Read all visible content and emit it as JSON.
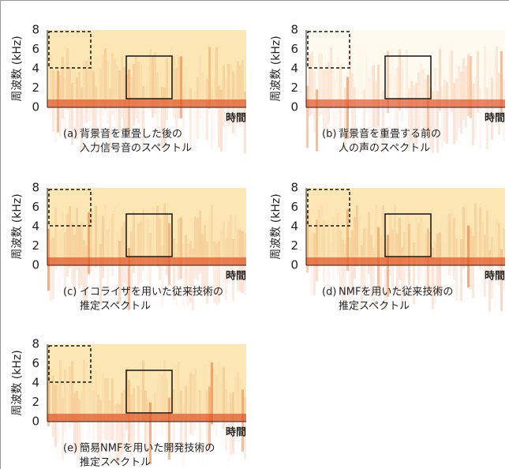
{
  "panels": [
    {
      "label": "(a)",
      "caption": [
        "背景音を重畳した後の",
        "入力信号音のスペクトル"
      ],
      "ylabel": "周波数 (kHz)",
      "yticks": [
        0,
        2,
        4,
        6,
        8
      ],
      "xlabel": "時間"
    },
    {
      "label": "(b)",
      "caption": [
        "背景音を重畳する前の",
        "人の声のスペクトル"
      ],
      "ylabel": "周波数 (kHz)",
      "yticks": [
        0,
        2,
        4,
        6,
        8
      ],
      "xlabel": "時間"
    },
    {
      "label": "(c)",
      "caption": [
        "イコライザを用いた従来技術の",
        "推定スペクトル"
      ],
      "ylabel": "周波数 (kHz)",
      "yticks": [
        0,
        2,
        4,
        6,
        8
      ],
      "xlabel": "時間"
    },
    {
      "label": "(d)",
      "caption": [
        "NMFを用いた従来技術の",
        "推定スペクトル"
      ],
      "ylabel": "周波数 (kHz)",
      "yticks": [
        0,
        2,
        4,
        6,
        8
      ],
      "xlabel": "時間"
    },
    {
      "label": "(e)",
      "caption": [
        "簡易NMFを用いた開発技術の",
        "推定スペクトル"
      ],
      "ylabel": "周波数 (kHz)",
      "yticks": [
        0,
        2,
        4,
        6,
        8
      ],
      "xlabel": "時間"
    }
  ]
}
